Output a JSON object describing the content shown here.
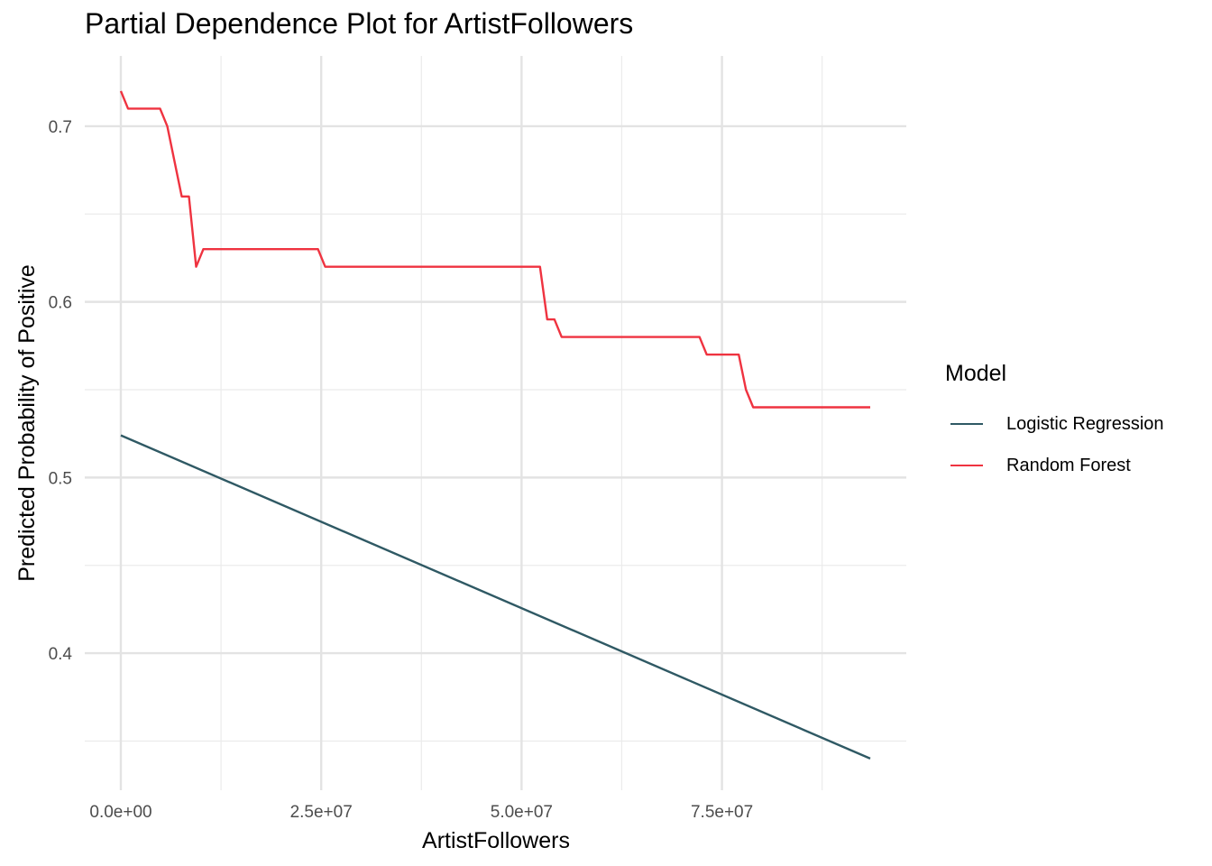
{
  "chart_data": {
    "type": "line",
    "title": "Partial Dependence Plot for ArtistFollowers",
    "xlabel": "ArtistFollowers",
    "ylabel": "Predicted Probability of Positive",
    "xlim": [
      -4500000,
      98000000
    ],
    "ylim": [
      0.322,
      0.74
    ],
    "x_ticks": [
      0,
      25000000,
      50000000,
      75000000
    ],
    "x_tick_labels": [
      "0.0e+00",
      "2.5e+07",
      "5.0e+07",
      "7.5e+07"
    ],
    "y_ticks": [
      0.4,
      0.5,
      0.6,
      0.7
    ],
    "y_tick_labels": [
      "0.4",
      "0.5",
      "0.6",
      "0.7"
    ],
    "grid": true,
    "legend_title": "Model",
    "legend_position": "right",
    "series": [
      {
        "name": "Logistic Regression",
        "color": "#2f5964",
        "x": [
          0,
          93500000
        ],
        "y": [
          0.524,
          0.34
        ]
      },
      {
        "name": "Random Forest",
        "color": "#ef3340",
        "x": [
          0,
          900000,
          4900000,
          5800000,
          7600000,
          8500000,
          9400000,
          10300000,
          24600000,
          25500000,
          52300000,
          53200000,
          54100000,
          55000000,
          72200000,
          73100000,
          77100000,
          78000000,
          78900000,
          93500000
        ],
        "y": [
          0.72,
          0.71,
          0.71,
          0.7,
          0.66,
          0.66,
          0.62,
          0.63,
          0.63,
          0.62,
          0.62,
          0.59,
          0.59,
          0.58,
          0.58,
          0.57,
          0.57,
          0.55,
          0.54,
          0.54
        ]
      }
    ]
  }
}
